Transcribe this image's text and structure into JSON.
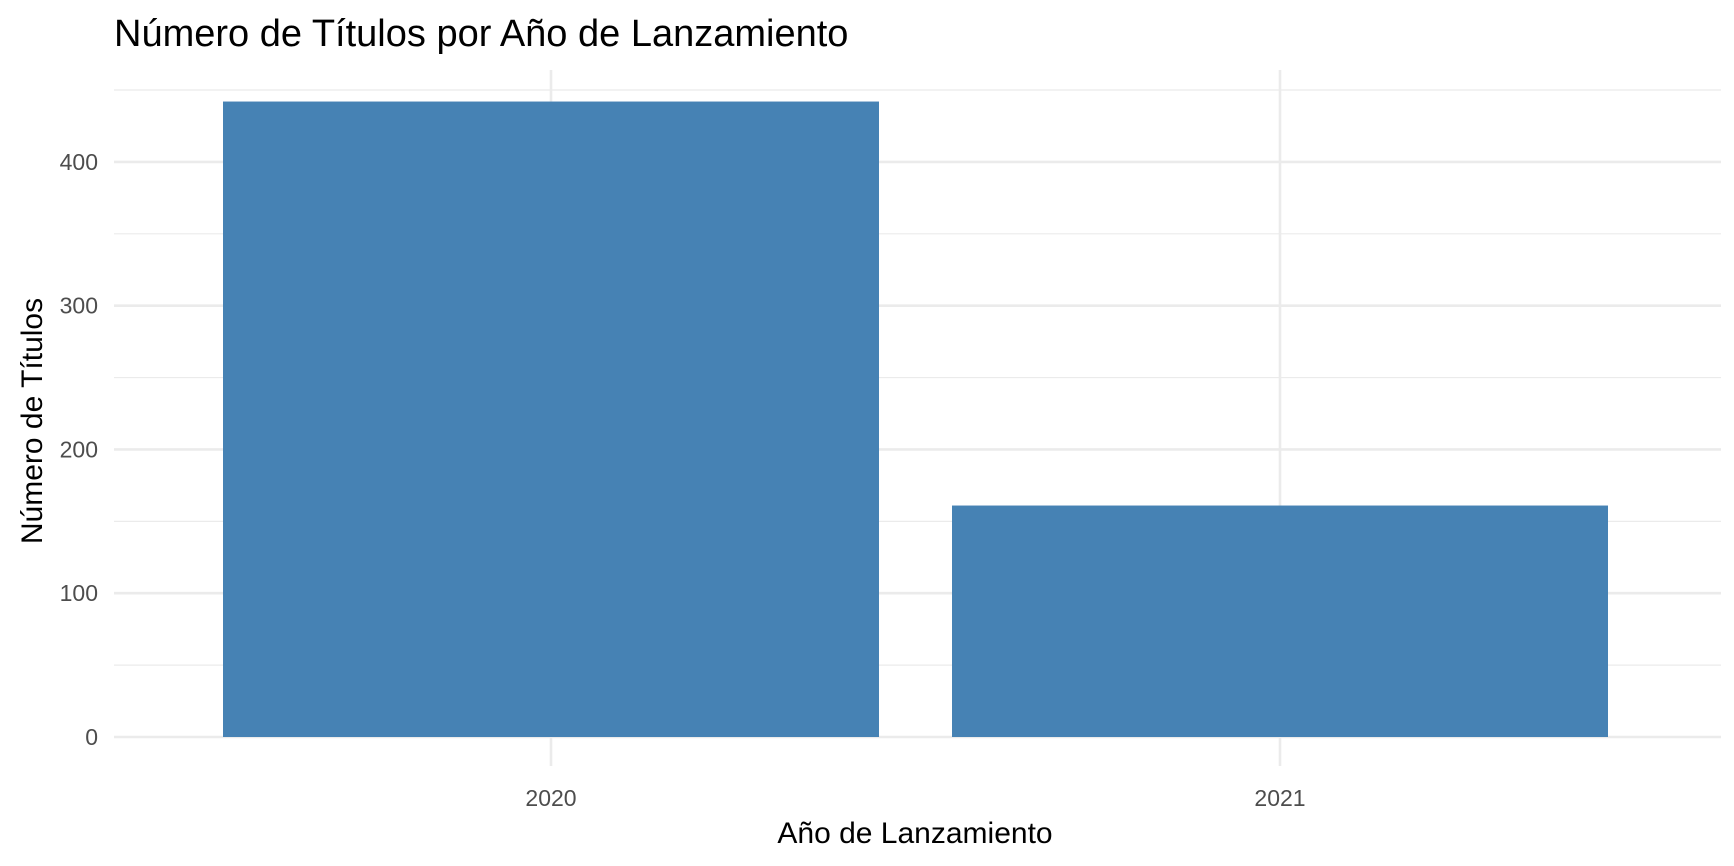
{
  "chart_data": {
    "type": "bar",
    "title": "Número de Títulos por Año de Lanzamiento",
    "xlabel": "Año de Lanzamiento",
    "ylabel": "Número de Títulos",
    "categories": [
      "2020",
      "2021"
    ],
    "values": [
      442,
      161
    ],
    "ylim": [
      0,
      450
    ],
    "yticks": [
      0,
      100,
      200,
      300,
      400
    ],
    "ytick_labels": [
      "0",
      "100",
      "200",
      "300",
      "400"
    ],
    "grid": true,
    "legend": "none",
    "bar_color": "#4682B4",
    "grid_color": "#EBEBEB"
  }
}
